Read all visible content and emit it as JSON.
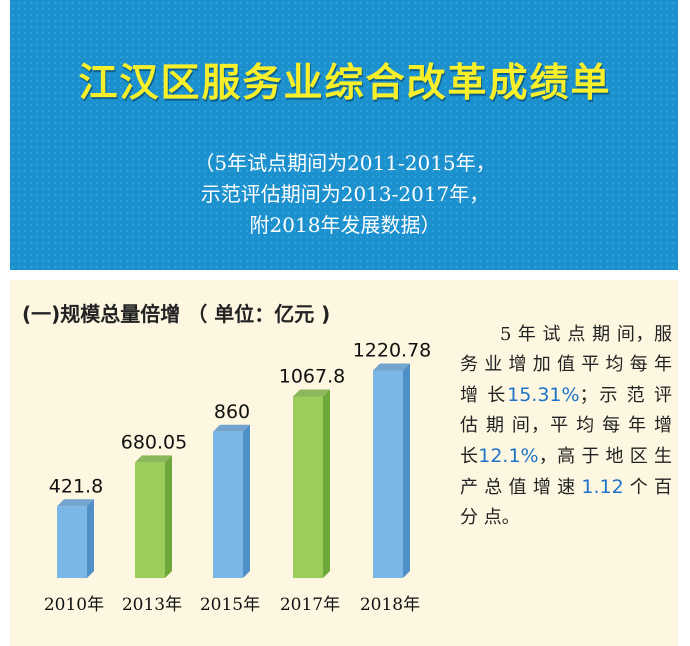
{
  "header": {
    "title": "江汉区服务业综合改革成绩单",
    "sub_line1": "（5年试点期间为2011-2015年，",
    "sub_line2": "示范评估期间为2013-2017年，",
    "sub_line3": "附2018年发展数据）"
  },
  "colors": {
    "blue_bar": "#7ab6e6",
    "green_bar": "#9ccc5a",
    "title_yellow": "#f7ef2a",
    "highlight": "#1e73c8"
  },
  "chart_data": {
    "type": "bar",
    "title": "(一)规模总量倍增 （ 单位：亿元 )",
    "categories": [
      "2010年",
      "2013年",
      "2015年",
      "2017年",
      "2018年"
    ],
    "values": [
      421.8,
      680.05,
      860,
      1067.8,
      1220.78
    ],
    "value_labels": [
      "421.8",
      "680.05",
      "860",
      "1067.8",
      "1220.78"
    ],
    "bar_colors": [
      "blue",
      "green",
      "blue",
      "green",
      "blue"
    ],
    "ylim": [
      0,
      1400
    ],
    "grid": false,
    "legend": "none"
  },
  "note": {
    "t1": "5 年 试 点 期 间，服 务 业 增 加 值 平 均 每 年 增 长",
    "v1": "15.31%",
    "t2": "；示 范 评 估 期 间，平 均 每 年 增 长",
    "v2": "12.1%",
    "t3": "，高 于 地 区 生 产 总 值 增 速",
    "v3": "1.12",
    "t4": "个 百 分 点。"
  }
}
